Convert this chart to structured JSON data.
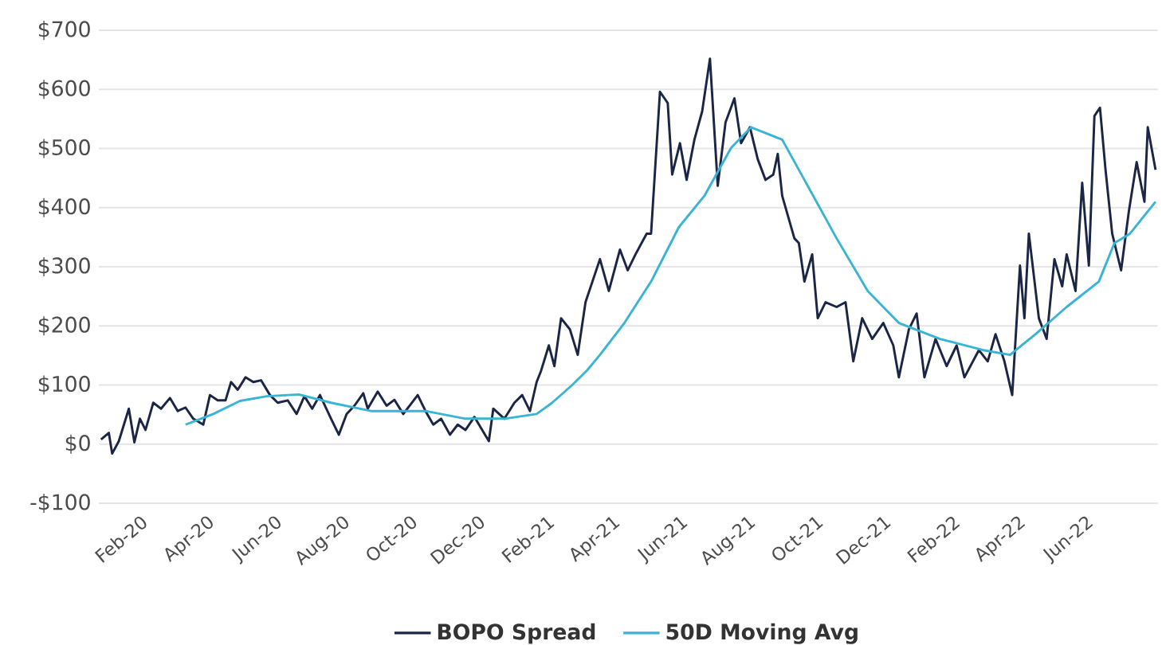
{
  "chart_data": {
    "type": "line",
    "grid": "y",
    "legend": "bottom",
    "xlim": [
      "2019-12-25",
      "2022-08-04"
    ],
    "ylim": [
      -100,
      700
    ],
    "xticks": [
      {
        "value": "2020-02-01",
        "label": "Feb-20"
      },
      {
        "value": "2020-04-01",
        "label": "Apr-20"
      },
      {
        "value": "2020-06-01",
        "label": "Jun-20"
      },
      {
        "value": "2020-08-01",
        "label": "Aug-20"
      },
      {
        "value": "2020-10-01",
        "label": "Oct-20"
      },
      {
        "value": "2020-12-01",
        "label": "Dec-20"
      },
      {
        "value": "2021-02-01",
        "label": "Feb-21"
      },
      {
        "value": "2021-04-01",
        "label": "Apr-21"
      },
      {
        "value": "2021-06-01",
        "label": "Jun-21"
      },
      {
        "value": "2021-08-01",
        "label": "Aug-21"
      },
      {
        "value": "2021-10-01",
        "label": "Oct-21"
      },
      {
        "value": "2021-12-01",
        "label": "Dec-21"
      },
      {
        "value": "2022-02-01",
        "label": "Feb-22"
      },
      {
        "value": "2022-04-01",
        "label": "Apr-22"
      },
      {
        "value": "2022-06-01",
        "label": "Jun-22"
      }
    ],
    "yticks": [
      {
        "value": -100,
        "label": "-$100"
      },
      {
        "value": 0,
        "label": "$0"
      },
      {
        "value": 100,
        "label": "$100"
      },
      {
        "value": 200,
        "label": "$200"
      },
      {
        "value": 300,
        "label": "$300"
      },
      {
        "value": 400,
        "label": "$400"
      },
      {
        "value": 500,
        "label": "$500"
      },
      {
        "value": 600,
        "label": "$600"
      },
      {
        "value": 700,
        "label": "$700"
      }
    ],
    "series": [
      {
        "name": "BOPO Spread",
        "color": "#1b2545",
        "x": [
          "2019-12-27",
          "2020-01-03",
          "2020-01-06",
          "2020-01-12",
          "2020-01-21",
          "2020-01-26",
          "2020-01-31",
          "2020-02-05",
          "2020-02-12",
          "2020-02-19",
          "2020-02-27",
          "2020-03-05",
          "2020-03-12",
          "2020-03-19",
          "2020-03-28",
          "2020-04-03",
          "2020-04-10",
          "2020-04-17",
          "2020-04-22",
          "2020-04-28",
          "2020-05-05",
          "2020-05-12",
          "2020-05-19",
          "2020-05-27",
          "2020-06-03",
          "2020-06-12",
          "2020-06-20",
          "2020-06-27",
          "2020-07-04",
          "2020-07-11",
          "2020-07-21",
          "2020-07-28",
          "2020-08-04",
          "2020-08-11",
          "2020-08-19",
          "2020-08-23",
          "2020-09-01",
          "2020-09-09",
          "2020-09-16",
          "2020-09-24",
          "2020-10-07",
          "2020-10-14",
          "2020-10-21",
          "2020-10-28",
          "2020-11-05",
          "2020-11-12",
          "2020-11-19",
          "2020-11-27",
          "2020-12-10",
          "2020-12-14",
          "2020-12-24",
          "2021-01-02",
          "2021-01-09",
          "2021-01-16",
          "2021-01-22",
          "2021-01-26",
          "2021-02-02",
          "2021-02-07",
          "2021-02-13",
          "2021-02-21",
          "2021-02-28",
          "2021-03-07",
          "2021-03-20",
          "2021-03-28",
          "2021-04-07",
          "2021-04-14",
          "2021-04-21",
          "2021-05-01",
          "2021-05-05",
          "2021-05-13",
          "2021-05-20",
          "2021-05-24",
          "2021-05-31",
          "2021-06-06",
          "2021-06-13",
          "2021-06-20",
          "2021-06-27",
          "2021-07-04",
          "2021-07-11",
          "2021-07-19",
          "2021-07-25",
          "2021-08-02",
          "2021-08-09",
          "2021-08-16",
          "2021-08-23",
          "2021-08-27",
          "2021-08-31",
          "2021-09-11",
          "2021-09-15",
          "2021-09-20",
          "2021-09-27",
          "2021-10-02",
          "2021-10-09",
          "2021-10-19",
          "2021-10-27",
          "2021-11-03",
          "2021-11-11",
          "2021-11-20",
          "2021-11-30",
          "2021-12-09",
          "2021-12-14",
          "2021-12-23",
          "2021-12-30",
          "2022-01-06",
          "2022-01-16",
          "2022-01-26",
          "2022-02-04",
          "2022-02-11",
          "2022-02-24",
          "2022-03-04",
          "2022-03-11",
          "2022-03-19",
          "2022-03-26",
          "2022-04-02",
          "2022-04-06",
          "2022-04-10",
          "2022-04-19",
          "2022-04-26",
          "2022-05-03",
          "2022-05-10",
          "2022-05-14",
          "2022-05-22",
          "2022-05-28",
          "2022-06-03",
          "2022-06-08",
          "2022-06-13",
          "2022-06-18",
          "2022-06-24",
          "2022-07-02",
          "2022-07-09",
          "2022-07-16",
          "2022-07-23",
          "2022-07-26",
          "2022-08-02"
        ],
        "values": [
          8,
          19,
          -16,
          5,
          60,
          3,
          43,
          24,
          70,
          60,
          78,
          56,
          62,
          43,
          33,
          83,
          74,
          74,
          105,
          92,
          113,
          105,
          108,
          83,
          70,
          74,
          51,
          81,
          60,
          83,
          43,
          16,
          51,
          65,
          86,
          60,
          89,
          65,
          75,
          51,
          83,
          56,
          33,
          43,
          16,
          33,
          24,
          46,
          5,
          60,
          43,
          70,
          83,
          56,
          105,
          124,
          167,
          132,
          213,
          194,
          151,
          240,
          313,
          259,
          329,
          294,
          321,
          356,
          356,
          596,
          577,
          456,
          509,
          447,
          515,
          563,
          652,
          437,
          544,
          585,
          509,
          536,
          482,
          447,
          456,
          491,
          420,
          348,
          340,
          275,
          321,
          213,
          240,
          232,
          240,
          140,
          213,
          178,
          205,
          167,
          113,
          194,
          221,
          113,
          178,
          132,
          167,
          113,
          159,
          140,
          186,
          140,
          83,
          302,
          213,
          356,
          213,
          178,
          313,
          267,
          321,
          259,
          442,
          302,
          555,
          569,
          464,
          356,
          294,
          394,
          477,
          410,
          536,
          464
        ]
      },
      {
        "name": "50D Moving Avg",
        "color": "#3ab4d4",
        "x": [
          "2020-03-12",
          "2020-04-06",
          "2020-04-30",
          "2020-05-24",
          "2020-06-22",
          "2020-07-21",
          "2020-08-26",
          "2020-10-14",
          "2020-11-19",
          "2020-12-24",
          "2021-01-22",
          "2021-02-05",
          "2021-02-23",
          "2021-03-08",
          "2021-03-20",
          "2021-04-11",
          "2021-05-05",
          "2021-05-30",
          "2021-06-22",
          "2021-07-16",
          "2021-08-03",
          "2021-08-31",
          "2021-09-20",
          "2021-10-19",
          "2021-11-16",
          "2021-12-14",
          "2022-01-20",
          "2022-02-28",
          "2022-03-24",
          "2022-04-16",
          "2022-05-14",
          "2022-06-12",
          "2022-06-26",
          "2022-07-10",
          "2022-08-02"
        ],
        "values": [
          33,
          51,
          73,
          81,
          84,
          70,
          56,
          56,
          43,
          43,
          51,
          70,
          100,
          124,
          151,
          205,
          275,
          367,
          420,
          501,
          536,
          515,
          447,
          348,
          259,
          205,
          178,
          159,
          151,
          186,
          232,
          275,
          340,
          356,
          410
        ]
      }
    ]
  }
}
